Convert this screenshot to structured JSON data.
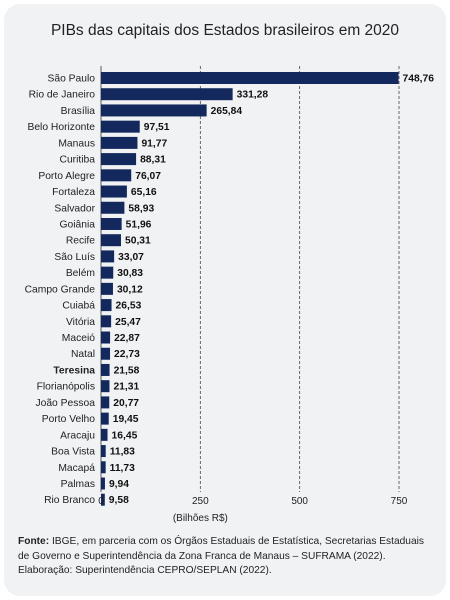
{
  "chart_data": {
    "type": "bar",
    "orientation": "horizontal",
    "title": "PIBs das capitais dos Estados brasileiros em 2020",
    "xlabel": "(Bilhões R$)",
    "ylabel": "",
    "xlim": [
      0,
      750
    ],
    "xticks": [
      "0",
      "250",
      "500",
      "750"
    ],
    "grid": "vertical dashed at tick positions",
    "highlighted_category": "Teresina",
    "bar_color": "#13295e",
    "categories": [
      "São Paulo",
      "Rio de Janeiro",
      "Brasília",
      "Belo Horizonte",
      "Manaus",
      "Curitiba",
      "Porto Alegre",
      "Fortaleza",
      "Salvador",
      "Goiânia",
      "Recife",
      "São Luís",
      "Belém",
      "Campo Grande",
      "Cuiabá",
      "Vitória",
      "Maceió",
      "Natal",
      "Teresina",
      "Florianópolis",
      "João Pessoa",
      "Porto Velho",
      "Aracaju",
      "Boa Vista",
      "Macapá",
      "Palmas",
      "Rio Branco"
    ],
    "values": [
      748.76,
      331.28,
      265.84,
      97.51,
      91.77,
      88.31,
      76.07,
      65.16,
      58.93,
      51.96,
      50.31,
      33.07,
      30.83,
      30.12,
      26.53,
      25.47,
      22.87,
      22.73,
      21.58,
      21.31,
      20.77,
      19.45,
      16.45,
      11.83,
      11.73,
      9.94,
      9.58
    ],
    "value_labels": [
      "748,76",
      "331,28",
      "265,84",
      "97,51",
      "91,77",
      "88,31",
      "76,07",
      "65,16",
      "58,93",
      "51,96",
      "50,31",
      "33,07",
      "30,83",
      "30,12",
      "26,53",
      "25,47",
      "22,87",
      "22,73",
      "21,58",
      "21,31",
      "20,77",
      "19,45",
      "16,45",
      "11,83",
      "11,73",
      "9,94",
      "9,58"
    ]
  },
  "source": {
    "label": "Fonte:",
    "text": "IBGE, em parceria com os Órgãos Estaduais de Estatística, Secretarias Estaduais de Governo e Superintendência da Zona Franca de Manaus – SUFRAMA (2022).",
    "credit": "Elaboração: Superintendência CEPRO/SEPLAN (2022)."
  }
}
